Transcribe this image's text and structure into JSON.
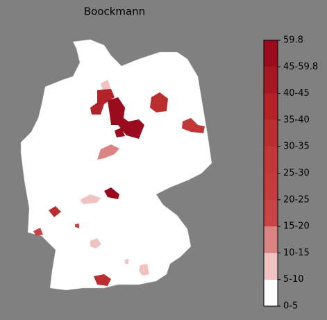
{
  "title": "Boockmann",
  "colorbar": {
    "ticks": [
      "0-5",
      "5-10",
      "10-15",
      "15-20",
      "20-25",
      "25-30",
      "30-35",
      "35-40",
      "40-45",
      "45-59.8",
      "59.8"
    ],
    "colors": [
      "#ffffff",
      "#f0c2c2",
      "#dc8484",
      "#c94444",
      "#c53c3c",
      "#c13636",
      "#bb2e30",
      "#b22228",
      "#a81822",
      "#9b0b1e"
    ]
  }
}
